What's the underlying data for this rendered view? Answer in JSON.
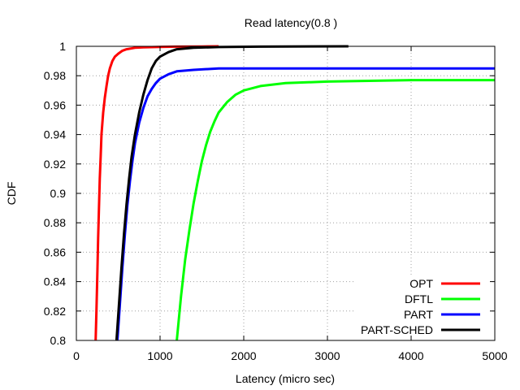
{
  "chart_data": {
    "type": "line",
    "title": "Read latency(0.8  )",
    "xlabel": "Latency (micro sec)",
    "ylabel": "CDF",
    "xlim": [
      0,
      5000
    ],
    "ylim": [
      0.8,
      1.0
    ],
    "xticks": [
      0,
      1000,
      2000,
      3000,
      4000,
      5000
    ],
    "yticks": [
      0.8,
      0.82,
      0.84,
      0.86,
      0.88,
      0.9,
      0.92,
      0.94,
      0.96,
      0.98,
      1
    ],
    "grid": true,
    "legend_position": "bottom-right",
    "series": [
      {
        "name": "OPT",
        "color": "#ff0000",
        "x": [
          230,
          240,
          250,
          260,
          270,
          280,
          290,
          300,
          320,
          340,
          360,
          380,
          400,
          430,
          460,
          500,
          550,
          600,
          700,
          800,
          1000,
          1200,
          1500,
          1700
        ],
        "y": [
          0.8,
          0.82,
          0.845,
          0.87,
          0.89,
          0.91,
          0.925,
          0.94,
          0.955,
          0.965,
          0.973,
          0.98,
          0.985,
          0.99,
          0.993,
          0.995,
          0.997,
          0.998,
          0.999,
          0.9993,
          0.9996,
          0.9998,
          0.9999,
          1.0
        ]
      },
      {
        "name": "DFTL",
        "color": "#00ff00",
        "x": [
          1200,
          1250,
          1300,
          1350,
          1400,
          1450,
          1500,
          1550,
          1600,
          1650,
          1700,
          1800,
          1900,
          2000,
          2200,
          2500,
          3000,
          3500,
          4000,
          5000
        ],
        "y": [
          0.8,
          0.83,
          0.855,
          0.875,
          0.893,
          0.908,
          0.922,
          0.933,
          0.942,
          0.949,
          0.955,
          0.962,
          0.967,
          0.97,
          0.973,
          0.975,
          0.976,
          0.9765,
          0.977,
          0.977
        ]
      },
      {
        "name": "PART",
        "color": "#0000ff",
        "x": [
          490,
          520,
          550,
          580,
          610,
          640,
          670,
          700,
          750,
          800,
          850,
          900,
          950,
          1000,
          1100,
          1200,
          1400,
          1700,
          2500,
          5000
        ],
        "y": [
          0.8,
          0.825,
          0.85,
          0.872,
          0.892,
          0.908,
          0.922,
          0.934,
          0.948,
          0.958,
          0.966,
          0.971,
          0.975,
          0.978,
          0.981,
          0.983,
          0.984,
          0.985,
          0.985,
          0.985
        ]
      },
      {
        "name": "PART-SCHED",
        "color": "#000000",
        "x": [
          480,
          510,
          540,
          570,
          600,
          630,
          660,
          700,
          750,
          800,
          850,
          900,
          950,
          1000,
          1100,
          1200,
          1400,
          1700,
          2200,
          3250
        ],
        "y": [
          0.8,
          0.825,
          0.85,
          0.873,
          0.893,
          0.91,
          0.925,
          0.94,
          0.955,
          0.967,
          0.977,
          0.985,
          0.99,
          0.993,
          0.996,
          0.998,
          0.999,
          0.9995,
          0.9998,
          1.0
        ]
      }
    ]
  }
}
